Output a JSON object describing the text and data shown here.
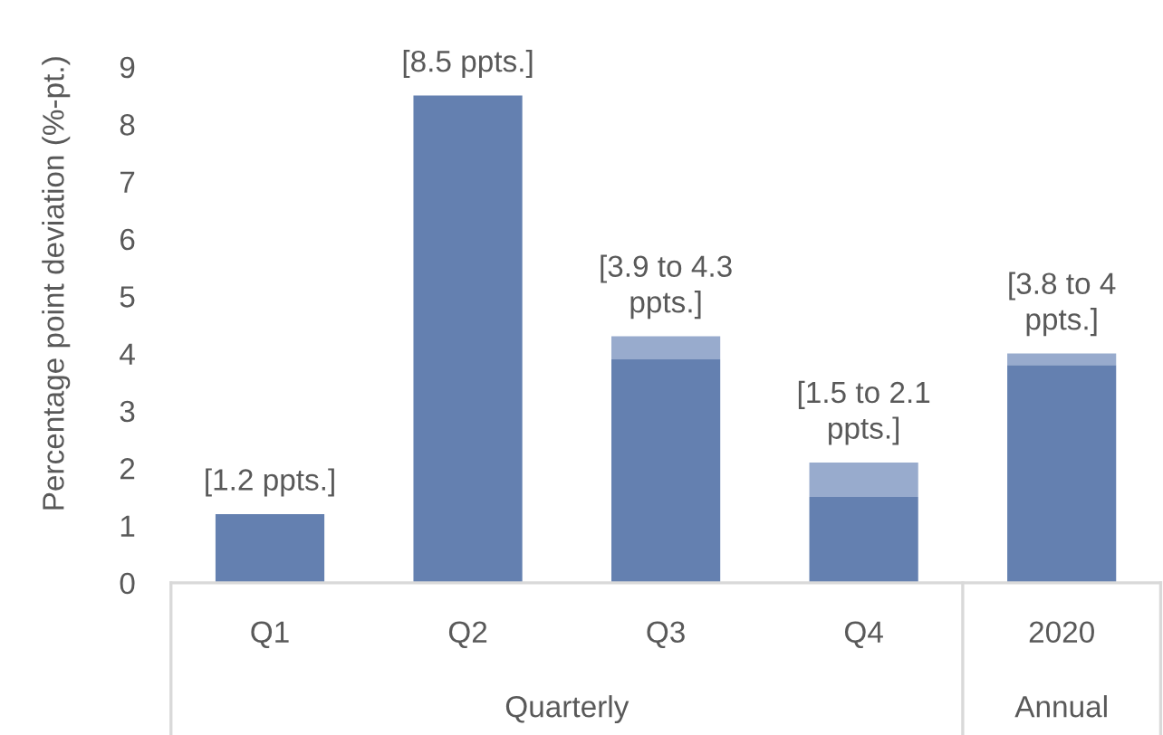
{
  "chart_data": {
    "type": "bar",
    "stacked": true,
    "ylabel": "Percentage point deviation (%-pt.)",
    "categories": [
      "Q1",
      "Q2",
      "Q3",
      "Q4",
      "2020"
    ],
    "series": [
      {
        "color": "#6480b0",
        "values": [
          1.2,
          8.5,
          3.9,
          1.5,
          3.8
        ]
      },
      {
        "color": "#98abcd",
        "values": [
          null,
          null,
          0.4,
          0.6,
          0.2
        ]
      }
    ],
    "ylim": [
      0,
      9
    ],
    "yticks": [
      0,
      1,
      2,
      3,
      4,
      5,
      6,
      7,
      8,
      9
    ],
    "annotations": [
      {
        "text": "[1.2 ppts.]",
        "x": "Q1",
        "y": 1.2
      },
      {
        "text": "[8.5 ppts.]",
        "x": "Q2",
        "y": 8.5
      },
      {
        "text": "[3.9 to 4.3\nppts.]",
        "x": "Q3",
        "y": 4.3
      },
      {
        "text": "[1.5 to 2.1\nppts.]",
        "x": "Q4",
        "y": 2.1
      },
      {
        "text": "[3.8 to 4\nppts.]",
        "x": "2020",
        "y": 4
      },
      "Quarterly",
      "Annual"
    ]
  }
}
